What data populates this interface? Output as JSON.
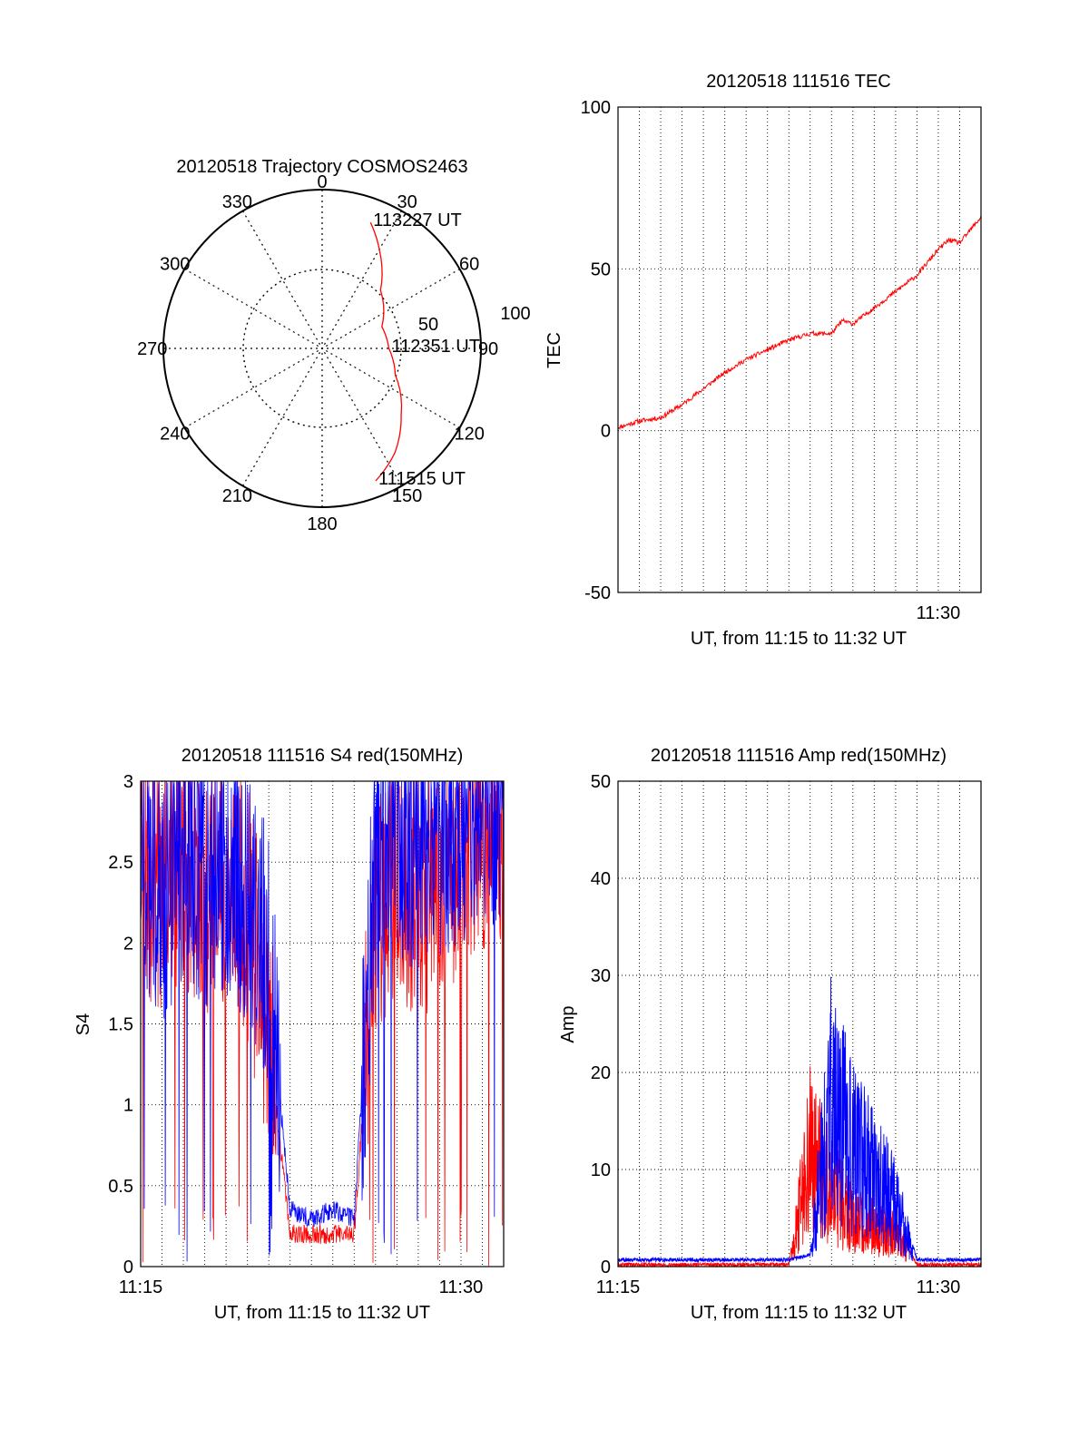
{
  "chart_data": [
    {
      "id": "trajectory",
      "type": "polar",
      "title": "20120518 Trajectory COSMOS2463",
      "angle_labels": [
        "0",
        "30",
        "60",
        "90",
        "120",
        "150",
        "180",
        "210",
        "240",
        "270",
        "300",
        "330"
      ],
      "radial_labels": [
        "50",
        "100"
      ],
      "rlim": [
        0,
        100
      ],
      "grid": true,
      "trajectory": {
        "color": "#ff0000",
        "points": [
          {
            "az": 21,
            "r": 85
          },
          {
            "az": 30,
            "r": 72
          },
          {
            "az": 45,
            "r": 52
          },
          {
            "az": 70,
            "r": 40
          },
          {
            "az": 90,
            "r": 42
          },
          {
            "az": 110,
            "r": 49
          },
          {
            "az": 130,
            "r": 65
          },
          {
            "az": 145,
            "r": 80
          },
          {
            "az": 158,
            "r": 90
          }
        ]
      },
      "annotations": [
        {
          "text": "113227 UT",
          "az": 21,
          "r": 85
        },
        {
          "text": "112351 UT",
          "az": 90,
          "r": 42
        },
        {
          "text": "111515 UT",
          "az": 158,
          "r": 90
        }
      ]
    },
    {
      "id": "tec",
      "type": "line",
      "title": "20120518 111516 TEC",
      "xlabel": "UT, from 11:15 to 11:32 UT",
      "ylabel": "TEC",
      "xlim": [
        "11:15",
        "11:32"
      ],
      "ylim": [
        -50,
        100
      ],
      "yticks": [
        -50,
        0,
        50,
        100
      ],
      "xtick_labels": [
        "11:30"
      ],
      "grid": true,
      "series": [
        {
          "color": "#ff0000",
          "x": [
            "11:15",
            "11:16",
            "11:17",
            "11:18",
            "11:19",
            "11:20",
            "11:21",
            "11:22",
            "11:23",
            "11:24",
            "11:25",
            "11:25:30",
            "11:26",
            "11:27",
            "11:28",
            "11:29",
            "11:30",
            "11:30:30",
            "11:31",
            "11:32"
          ],
          "y": [
            1,
            3,
            4,
            8,
            13,
            18,
            22,
            25,
            28,
            30,
            30,
            34,
            33,
            38,
            43,
            48,
            56,
            59,
            58,
            66
          ]
        }
      ]
    },
    {
      "id": "s4",
      "type": "line",
      "title": "20120518 111516 S4 red(150MHz)",
      "xlabel": "UT, from 11:15 to 11:32 UT",
      "ylabel": "S4",
      "xlim": [
        "11:15",
        "11:32"
      ],
      "ylim": [
        0,
        3
      ],
      "yticks": [
        0,
        0.5,
        1,
        1.5,
        2,
        2.5,
        3
      ],
      "ytick_labels": [
        "0",
        "0.5",
        "1",
        "1.5",
        "2",
        "2.5",
        "3"
      ],
      "xtick_labels": [
        "11:15",
        "11:30"
      ],
      "grid": true,
      "series": [
        {
          "color": "#ff0000",
          "x": [
            "11:15",
            "11:16",
            "11:17",
            "11:18",
            "11:19",
            "11:20",
            "11:21",
            "11:22",
            "11:23",
            "11:24",
            "11:25",
            "11:26",
            "11:27",
            "11:28",
            "11:29",
            "11:30",
            "11:31",
            "11:32"
          ],
          "y": [
            2.4,
            2.3,
            2.4,
            2.2,
            2.3,
            2.1,
            1.4,
            0.2,
            0.2,
            0.2,
            0.2,
            2.1,
            2.4,
            2.2,
            2.4,
            2.5,
            2.6,
            2.7
          ]
        },
        {
          "color": "#0000ff",
          "x": [
            "11:15",
            "11:16",
            "11:17",
            "11:18",
            "11:19",
            "11:20",
            "11:21",
            "11:22",
            "11:23",
            "11:24",
            "11:25",
            "11:26",
            "11:27",
            "11:28",
            "11:29",
            "11:30",
            "11:31",
            "11:32"
          ],
          "y": [
            2.4,
            2.2,
            2.5,
            2.3,
            2.4,
            2.2,
            1.8,
            0.35,
            0.3,
            0.35,
            0.3,
            2.4,
            2.6,
            2.5,
            2.6,
            2.7,
            2.8,
            2.8
          ]
        }
      ]
    },
    {
      "id": "amp",
      "type": "line",
      "title": "20120518 111516 Amp red(150MHz)",
      "xlabel": "UT, from 11:15 to 11:32 UT",
      "ylabel": "Amp",
      "xlim": [
        "11:15",
        "11:32"
      ],
      "ylim": [
        0,
        50
      ],
      "yticks": [
        0,
        10,
        20,
        30,
        40,
        50
      ],
      "xtick_labels": [
        "11:15",
        "11:30"
      ],
      "grid": true,
      "series": [
        {
          "color": "#ff0000",
          "x": [
            "11:15",
            "11:18",
            "11:21",
            "11:23",
            "11:24",
            "11:25",
            "11:26",
            "11:27",
            "11:28",
            "11:29",
            "11:30",
            "11:32"
          ],
          "y": [
            0,
            0,
            0,
            0,
            15,
            10,
            6,
            5,
            4,
            0,
            0,
            0
          ]
        },
        {
          "color": "#0000ff",
          "x": [
            "11:15",
            "11:18",
            "11:21",
            "11:23",
            "11:24",
            "11:25",
            "11:26",
            "11:27",
            "11:28",
            "11:29",
            "11:30",
            "11:32"
          ],
          "y": [
            0.5,
            0.5,
            0.5,
            0.5,
            1,
            22,
            15,
            12,
            8,
            0.5,
            0.5,
            0.5
          ]
        }
      ]
    }
  ]
}
